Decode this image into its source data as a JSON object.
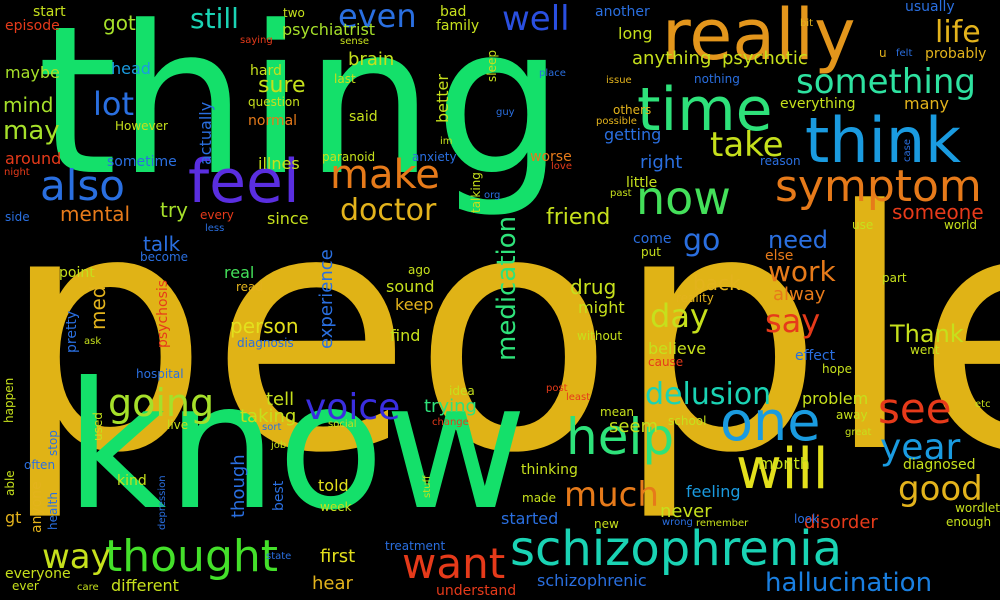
{
  "words": [
    {
      "text": "people",
      "color": "#e0b316"
    },
    {
      "text": "thing",
      "color": "#14e06a"
    },
    {
      "text": "know",
      "color": "#14e06a"
    },
    {
      "text": "schizophrenia",
      "color": "#1ad3b4"
    },
    {
      "text": "really",
      "color": "#e3961c"
    },
    {
      "text": "time",
      "color": "#2ee27a"
    },
    {
      "text": "think",
      "color": "#1a9be0"
    },
    {
      "text": "symptom",
      "color": "#e67a1a"
    },
    {
      "text": "feel",
      "color": "#5a2ee0"
    },
    {
      "text": "also",
      "color": "#2a6fe0"
    },
    {
      "text": "make",
      "color": "#e67a1a"
    },
    {
      "text": "now",
      "color": "#44e05a"
    },
    {
      "text": "will",
      "color": "#e3e01c"
    },
    {
      "text": "one",
      "color": "#1a9be0"
    },
    {
      "text": "help",
      "color": "#2ee27a"
    },
    {
      "text": "want",
      "color": "#e63a1a"
    },
    {
      "text": "thought",
      "color": "#44e02a"
    },
    {
      "text": "going",
      "color": "#a6e02a"
    },
    {
      "text": "voice",
      "color": "#3a2ee0"
    },
    {
      "text": "see",
      "color": "#e63a1a"
    },
    {
      "text": "year",
      "color": "#1a9be0"
    },
    {
      "text": "good",
      "color": "#e3b31c"
    },
    {
      "text": "lot",
      "color": "#2a6fe0"
    },
    {
      "text": "way",
      "color": "#c6e01c"
    },
    {
      "text": "much",
      "color": "#e67a1a"
    },
    {
      "text": "even",
      "color": "#2a6fe0"
    },
    {
      "text": "well",
      "color": "#2a4fe0"
    },
    {
      "text": "life",
      "color": "#e3b31c"
    },
    {
      "text": "something",
      "color": "#2ee2a0"
    },
    {
      "text": "take",
      "color": "#c6e01c"
    },
    {
      "text": "doctor",
      "color": "#e3b31c"
    },
    {
      "text": "delusion",
      "color": "#1ad3b4"
    },
    {
      "text": "medication",
      "color": "#2ee27a"
    },
    {
      "text": "day",
      "color": "#c6e01c"
    },
    {
      "text": "say",
      "color": "#e63a1a"
    },
    {
      "text": "work",
      "color": "#e67a1a"
    },
    {
      "text": "go",
      "color": "#2a6fe0"
    },
    {
      "text": "hallucination",
      "color": "#1a7fe0"
    },
    {
      "text": "still",
      "color": "#1ad3b4"
    },
    {
      "text": "may",
      "color": "#a6e02a"
    },
    {
      "text": "mind",
      "color": "#a6e02a"
    },
    {
      "text": "got",
      "color": "#a6e02a"
    },
    {
      "text": "maybe",
      "color": "#a6e02a"
    },
    {
      "text": "head",
      "color": "#1a9be0"
    },
    {
      "text": "mental",
      "color": "#e67a1a"
    },
    {
      "text": "try",
      "color": "#a6e02a"
    },
    {
      "text": "talk",
      "color": "#2a6fe0"
    },
    {
      "text": "med",
      "color": "#e3b31c"
    },
    {
      "text": "friend",
      "color": "#c6e01c"
    },
    {
      "text": "need",
      "color": "#2a6fe0"
    },
    {
      "text": "Thank",
      "color": "#c6e01c"
    },
    {
      "text": "someone",
      "color": "#e63a1a"
    },
    {
      "text": "sure",
      "color": "#c6e01c"
    },
    {
      "text": "brain",
      "color": "#c6e01c"
    },
    {
      "text": "psychiatrist",
      "color": "#a6e02a"
    },
    {
      "text": "anything",
      "color": "#c6e01c"
    },
    {
      "text": "psychotic",
      "color": "#c6e01c"
    },
    {
      "text": "long",
      "color": "#c6e01c"
    },
    {
      "text": "getting",
      "color": "#2a6fe0"
    },
    {
      "text": "right",
      "color": "#2a6fe0"
    },
    {
      "text": "drug",
      "color": "#c6e01c"
    },
    {
      "text": "back",
      "color": "#e3b31c"
    },
    {
      "text": "person",
      "color": "#e3e01c"
    },
    {
      "text": "experience",
      "color": "#2a6fe0"
    },
    {
      "text": "real",
      "color": "#44e05a"
    },
    {
      "text": "might",
      "color": "#c6e01c"
    },
    {
      "text": "sound",
      "color": "#c6e01c"
    },
    {
      "text": "keep",
      "color": "#e3b31c"
    },
    {
      "text": "find",
      "color": "#c6e01c"
    },
    {
      "text": "alway",
      "color": "#e67a1a"
    },
    {
      "text": "believe",
      "color": "#c6e01c"
    },
    {
      "text": "tell",
      "color": "#c6e01c"
    },
    {
      "text": "taking",
      "color": "#c6e01c"
    },
    {
      "text": "trying",
      "color": "#2ee27a"
    },
    {
      "text": "seem",
      "color": "#c6e01c"
    },
    {
      "text": "problem",
      "color": "#c6e01c"
    },
    {
      "text": "month",
      "color": "#c6e01c"
    },
    {
      "text": "feeling",
      "color": "#1a9be0"
    },
    {
      "text": "never",
      "color": "#c6e01c"
    },
    {
      "text": "disorder",
      "color": "#e63a1a"
    },
    {
      "text": "diagnosed",
      "color": "#c6e01c"
    },
    {
      "text": "first",
      "color": "#e3e01c"
    },
    {
      "text": "hear",
      "color": "#e3b31c"
    },
    {
      "text": "told",
      "color": "#e3e01c"
    },
    {
      "text": "started",
      "color": "#2a6fe0"
    },
    {
      "text": "schizophrenic",
      "color": "#2a6fe0"
    },
    {
      "text": "different",
      "color": "#c6e01c"
    },
    {
      "text": "thinking",
      "color": "#c6e01c"
    },
    {
      "text": "though",
      "color": "#2a6fe0"
    },
    {
      "text": "kind",
      "color": "#c6e01c"
    },
    {
      "text": "since",
      "color": "#c6e01c"
    },
    {
      "text": "illnes",
      "color": "#c6e01c"
    },
    {
      "text": "sometime",
      "color": "#2a6fe0"
    },
    {
      "text": "around",
      "color": "#e63a1a"
    },
    {
      "text": "actually",
      "color": "#2a6fe0"
    },
    {
      "text": "better",
      "color": "#c6e01c"
    },
    {
      "text": "said",
      "color": "#c6e01c"
    },
    {
      "text": "worse",
      "color": "#e67a1a"
    },
    {
      "text": "little",
      "color": "#c6e01c"
    },
    {
      "text": "come",
      "color": "#2a6fe0"
    },
    {
      "text": "else",
      "color": "#e67a1a"
    },
    {
      "text": "pretty",
      "color": "#2a6fe0"
    },
    {
      "text": "psychosis",
      "color": "#e63a1a"
    },
    {
      "text": "point",
      "color": "#c6e01c"
    },
    {
      "text": "anyone",
      "color": "#e3b31c"
    },
    {
      "text": "gt",
      "color": "#e3b31c"
    },
    {
      "text": "everyone",
      "color": "#c6e01c"
    },
    {
      "text": "usually",
      "color": "#2a6fe0"
    },
    {
      "text": "probably",
      "color": "#e3b31c"
    },
    {
      "text": "everything",
      "color": "#c6e01c"
    },
    {
      "text": "many",
      "color": "#e3b31c"
    },
    {
      "text": "another",
      "color": "#2a6fe0"
    },
    {
      "text": "nothing",
      "color": "#2a6fe0"
    },
    {
      "text": "bad",
      "color": "#c6e01c"
    },
    {
      "text": "family",
      "color": "#c6e01c"
    },
    {
      "text": "hard",
      "color": "#c6e01c"
    },
    {
      "text": "last",
      "color": "#c6e01c"
    },
    {
      "text": "question",
      "color": "#c6e01c"
    },
    {
      "text": "normal",
      "color": "#e67a1a"
    },
    {
      "text": "However",
      "color": "#c6e01c"
    },
    {
      "text": "paranoid",
      "color": "#c6e01c"
    },
    {
      "text": "anxiety",
      "color": "#2a6fe0"
    },
    {
      "text": "start",
      "color": "#c6e01c"
    },
    {
      "text": "episode",
      "color": "#e63a1a"
    },
    {
      "text": "two",
      "color": "#c6e01c"
    },
    {
      "text": "saying",
      "color": "#e63a1a"
    },
    {
      "text": "sense",
      "color": "#c6e01c"
    },
    {
      "text": "sleep",
      "color": "#c6e01c"
    },
    {
      "text": "place",
      "color": "#2a6fe0"
    },
    {
      "text": "issue",
      "color": "#e3b31c"
    },
    {
      "text": "others",
      "color": "#e3b31c"
    },
    {
      "text": "possible",
      "color": "#e3b31c"
    },
    {
      "text": "guy",
      "color": "#2a6fe0"
    },
    {
      "text": "bit",
      "color": "#e3b31c"
    },
    {
      "text": "u",
      "color": "#e3b31c"
    },
    {
      "text": "felt",
      "color": "#2a6fe0"
    },
    {
      "text": "reason",
      "color": "#2a6fe0"
    },
    {
      "text": "love",
      "color": "#e63a1a"
    },
    {
      "text": "past",
      "color": "#c6e01c"
    },
    {
      "text": "case",
      "color": "#2a6fe0"
    },
    {
      "text": "use",
      "color": "#c6e01c"
    },
    {
      "text": "world",
      "color": "#c6e01c"
    },
    {
      "text": "part",
      "color": "#c6e01c"
    },
    {
      "text": "reality",
      "color": "#e3b31c"
    },
    {
      "text": "put",
      "color": "#c6e01c"
    },
    {
      "text": "without",
      "color": "#c6e01c"
    },
    {
      "text": "ago",
      "color": "#c6e01c"
    },
    {
      "text": "read",
      "color": "#e3b31c"
    },
    {
      "text": "diagnosis",
      "color": "#2a6fe0"
    },
    {
      "text": "become",
      "color": "#2a6fe0"
    },
    {
      "text": "hospital",
      "color": "#2a6fe0"
    },
    {
      "text": "ask",
      "color": "#c6e01c"
    },
    {
      "text": "every",
      "color": "#e63a1a"
    },
    {
      "text": "less",
      "color": "#2a6fe0"
    },
    {
      "text": "talking",
      "color": "#c6e01c"
    },
    {
      "text": "org",
      "color": "#2a6fe0"
    },
    {
      "text": "im",
      "color": "#c6e01c"
    },
    {
      "text": "night",
      "color": "#e63a1a"
    },
    {
      "text": "side",
      "color": "#2a6fe0"
    },
    {
      "text": "effect",
      "color": "#2a6fe0"
    },
    {
      "text": "went",
      "color": "#c6e01c"
    },
    {
      "text": "hope",
      "color": "#c6e01c"
    },
    {
      "text": "cause",
      "color": "#e63a1a"
    },
    {
      "text": "away",
      "color": "#c6e01c"
    },
    {
      "text": "great",
      "color": "#c6e01c"
    },
    {
      "text": "etc",
      "color": "#c6e01c"
    },
    {
      "text": "school",
      "color": "#c6e01c"
    },
    {
      "text": "mean",
      "color": "#c6e01c"
    },
    {
      "text": "least",
      "color": "#e63a1a"
    },
    {
      "text": "post",
      "color": "#e63a1a"
    },
    {
      "text": "idea",
      "color": "#c6e01c"
    },
    {
      "text": "change",
      "color": "#e63a1a"
    },
    {
      "text": "social",
      "color": "#c6e01c"
    },
    {
      "text": "sort",
      "color": "#2a6fe0"
    },
    {
      "text": "live",
      "color": "#c6e01c"
    },
    {
      "text": "job",
      "color": "#c6e01c"
    },
    {
      "text": "best",
      "color": "#2a6fe0"
    },
    {
      "text": "depression",
      "color": "#2a6fe0"
    },
    {
      "text": "health",
      "color": "#2a6fe0"
    },
    {
      "text": "stop",
      "color": "#2a6fe0"
    },
    {
      "text": "used",
      "color": "#c6e01c"
    },
    {
      "text": "happen",
      "color": "#c6e01c"
    },
    {
      "text": "able",
      "color": "#c6e01c"
    },
    {
      "text": "often",
      "color": "#2a6fe0"
    },
    {
      "text": "ever",
      "color": "#c6e01c"
    },
    {
      "text": "care",
      "color": "#c6e01c"
    },
    {
      "text": "week",
      "color": "#c6e01c"
    },
    {
      "text": "state",
      "color": "#2a6fe0"
    },
    {
      "text": "stuff",
      "color": "#c6e01c"
    },
    {
      "text": "made",
      "color": "#c6e01c"
    },
    {
      "text": "new",
      "color": "#c6e01c"
    },
    {
      "text": "wrong",
      "color": "#2a6fe0"
    },
    {
      "text": "remember",
      "color": "#c6e01c"
    },
    {
      "text": "look",
      "color": "#2a6fe0"
    },
    {
      "text": "wordlet",
      "color": "#c6e01c"
    },
    {
      "text": "enough",
      "color": "#c6e01c"
    },
    {
      "text": "treatment",
      "color": "#2a6fe0"
    },
    {
      "text": "understand",
      "color": "#e63a1a"
    }
  ]
}
